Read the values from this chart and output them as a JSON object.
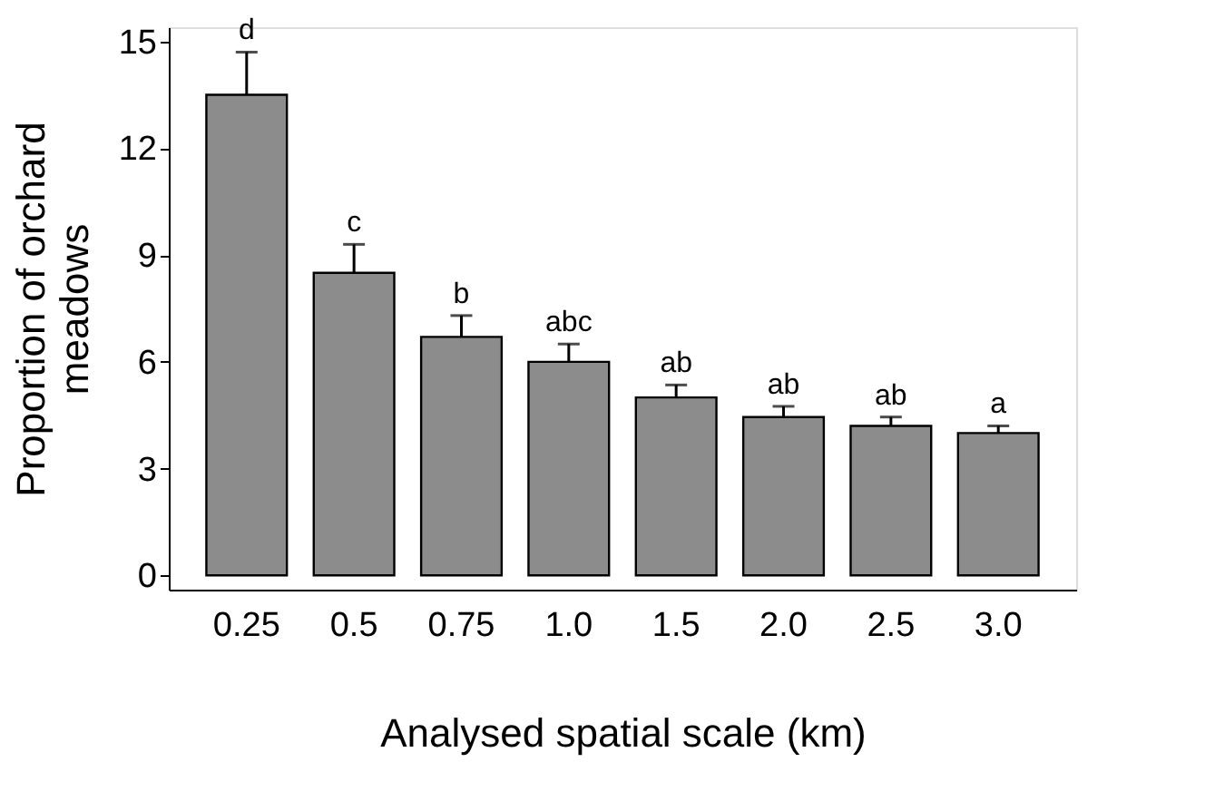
{
  "chart_data": {
    "type": "bar",
    "xlabel": "Analysed spatial scale (km)",
    "ylabel": "Proportion of orchard meadows",
    "categories": [
      "0.25",
      "0.5",
      "0.75",
      "1.0",
      "1.5",
      "2.0",
      "2.5",
      "3.0"
    ],
    "values": [
      13.5,
      8.5,
      6.7,
      6.0,
      5.0,
      4.45,
      4.2,
      4.0
    ],
    "errors": [
      [
        13.5,
        14.7
      ],
      [
        8.5,
        9.3
      ],
      [
        6.7,
        7.3
      ],
      [
        6.0,
        6.5
      ],
      [
        5.0,
        5.35
      ],
      [
        4.45,
        4.75
      ],
      [
        4.2,
        4.45
      ],
      [
        4.0,
        4.2
      ]
    ],
    "color": "#8c8c8c",
    "ylim": [
      -0.4,
      15.4
    ],
    "yticks": [
      0,
      3,
      6,
      9,
      12,
      15
    ],
    "grid": false,
    "annotations": [
      {
        "text": "d",
        "x": "0.25",
        "y": 14.7
      },
      {
        "text": "c",
        "x": "0.5",
        "y": 9.3
      },
      {
        "text": "b",
        "x": "0.75",
        "y": 7.3
      },
      {
        "text": "abc",
        "x": "1.0",
        "y": 6.5
      },
      {
        "text": "ab",
        "x": "1.5",
        "y": 5.35
      },
      {
        "text": "ab",
        "x": "2.0",
        "y": 4.75
      },
      {
        "text": "ab",
        "x": "2.5",
        "y": 4.45
      },
      {
        "text": "a",
        "x": "3.0",
        "y": 4.2
      }
    ]
  }
}
